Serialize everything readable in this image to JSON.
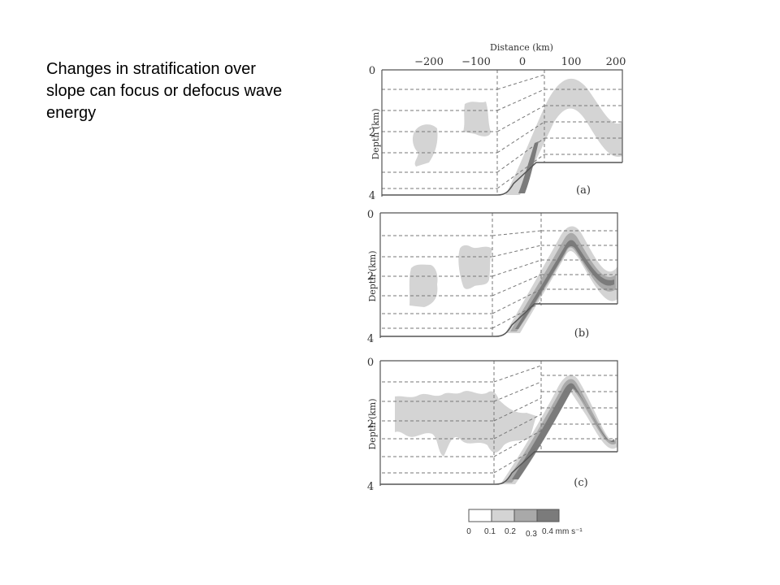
{
  "caption": {
    "line1": "Changes in stratification over",
    "line2": "slope can focus or defocus wave",
    "line3": "energy"
  },
  "figure": {
    "x_axis_title": "Distance (km)",
    "x_ticks": [
      "−200",
      "−100",
      "0",
      "100",
      "200"
    ],
    "y_axis_title": "Depth (km)",
    "y_ticks": [
      "0",
      "2",
      "4"
    ],
    "panels": [
      {
        "label": "(a)"
      },
      {
        "label": "(b)"
      },
      {
        "label": "(c)"
      }
    ],
    "legend": {
      "labels": [
        "0",
        "0.1",
        "0.2",
        "0.3",
        "0.4 mm s⁻¹"
      ],
      "colors": [
        "#ffffff",
        "#d4d4d4",
        "#a9a9a9",
        "#7b7b7b"
      ]
    },
    "colors": {
      "light": "#d4d4d4",
      "medium": "#a9a9a9",
      "dark": "#7b7b7b",
      "frame": "#555555",
      "dashed": "#777777"
    }
  }
}
